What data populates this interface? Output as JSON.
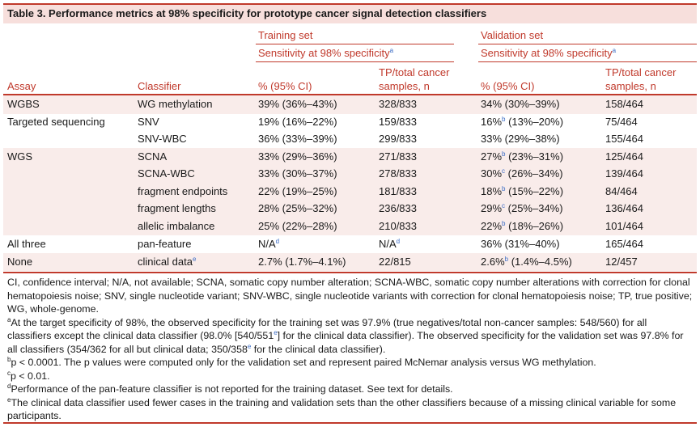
{
  "title": "Table 3.  Performance metrics at 98% specificity for prototype cancer signal detection classifiers",
  "headers": {
    "training_set": "Training set",
    "validation_set": "Validation set",
    "sensitivity_label": "Sensitivity at 98% specificity",
    "sensitivity_sup": "a",
    "assay": "Assay",
    "classifier": "Classifier",
    "pct_ci": "% (95% CI)",
    "tp_line1": "TP/total cancer",
    "tp_line2": "samples, n"
  },
  "rows": [
    {
      "assay": "WGBS",
      "classifier": "WG methylation",
      "classifier_sup": "",
      "train_pct": "39% (36%–43%)",
      "train_sup": "",
      "train_tp": "328/833",
      "train_tp_sup": "",
      "val_main": "34% (30%–39%)",
      "val_sup": "",
      "val_rest": "",
      "val_tp": "158/464"
    },
    {
      "assay": "Targeted sequencing",
      "classifier": "SNV",
      "classifier_sup": "",
      "train_pct": "19% (16%–22%)",
      "train_sup": "",
      "train_tp": "159/833",
      "train_tp_sup": "",
      "val_main": "16%",
      "val_sup": "b",
      "val_rest": " (13%–20%)",
      "val_tp": "75/464"
    },
    {
      "assay": "",
      "classifier": "SNV-WBC",
      "classifier_sup": "",
      "train_pct": "36% (33%–39%)",
      "train_sup": "",
      "train_tp": "299/833",
      "train_tp_sup": "",
      "val_main": "33% (29%–38%)",
      "val_sup": "",
      "val_rest": "",
      "val_tp": "155/464"
    },
    {
      "assay": "WGS",
      "classifier": "SCNA",
      "classifier_sup": "",
      "train_pct": "33% (29%–36%)",
      "train_sup": "",
      "train_tp": "271/833",
      "train_tp_sup": "",
      "val_main": "27%",
      "val_sup": "b",
      "val_rest": " (23%–31%)",
      "val_tp": "125/464"
    },
    {
      "assay": "",
      "classifier": "SCNA-WBC",
      "classifier_sup": "",
      "train_pct": "33% (30%–37%)",
      "train_sup": "",
      "train_tp": "278/833",
      "train_tp_sup": "",
      "val_main": "30%",
      "val_sup": "c",
      "val_rest": " (26%–34%)",
      "val_tp": "139/464"
    },
    {
      "assay": "",
      "classifier": "fragment endpoints",
      "classifier_sup": "",
      "train_pct": "22% (19%–25%)",
      "train_sup": "",
      "train_tp": "181/833",
      "train_tp_sup": "",
      "val_main": "18%",
      "val_sup": "b",
      "val_rest": " (15%–22%)",
      "val_tp": "84/464"
    },
    {
      "assay": "",
      "classifier": "fragment lengths",
      "classifier_sup": "",
      "train_pct": "28% (25%–32%)",
      "train_sup": "",
      "train_tp": "236/833",
      "train_tp_sup": "",
      "val_main": "29%",
      "val_sup": "c",
      "val_rest": " (25%–34%)",
      "val_tp": "136/464"
    },
    {
      "assay": "",
      "classifier": "allelic imbalance",
      "classifier_sup": "",
      "train_pct": "25% (22%–28%)",
      "train_sup": "",
      "train_tp": "210/833",
      "train_tp_sup": "",
      "val_main": "22%",
      "val_sup": "b",
      "val_rest": " (18%–26%)",
      "val_tp": "101/464"
    },
    {
      "assay": "All three",
      "classifier": "pan-feature",
      "classifier_sup": "",
      "train_pct": "N/A",
      "train_sup": "d",
      "train_tp": "N/A",
      "train_tp_sup": "d",
      "val_main": "36% (31%–40%)",
      "val_sup": "",
      "val_rest": "",
      "val_tp": "165/464"
    },
    {
      "assay": "None",
      "classifier": "clinical data",
      "classifier_sup": "e",
      "train_pct": "2.7% (1.7%–4.1%)",
      "train_sup": "",
      "train_tp": "22/815",
      "train_tp_sup": "",
      "val_main": "2.6%",
      "val_sup": "b",
      "val_rest": " (1.4%–4.5%)",
      "val_tp": "12/457"
    }
  ],
  "footnotes": {
    "abbrev": "CI, confidence interval; N/A, not available; SCNA, somatic copy number alteration; SCNA-WBC, somatic copy number alterations with correction for clonal hematopoiesis noise; SNV, single nucleotide variant; SNV-WBC, single nucleotide variants with correction for clonal hematopoiesis noise; TP, true positive; WG, whole-genome.",
    "a_mark": "a",
    "a_text1": "At the target specificity of 98%, the observed specificity for the training set was 97.9% (true negatives/total non-cancer samples: 548/560) for all classifiers except the clinical data classifier (98.0% [540/551",
    "a_ref1": "e",
    "a_text2": "] for the clinical data classifier). The observed specificity for the validation set was 97.8% for all classifiers (354/362 for all but clinical data; 350/358",
    "a_ref2": "e",
    "a_text3": " for the clinical data classifier).",
    "b_mark": "b",
    "b_text": "p < 0.0001. The p values were computed only for the validation set and represent paired McNemar analysis versus WG methylation.",
    "c_mark": "c",
    "c_text": "p < 0.01.",
    "d_mark": "d",
    "d_text": "Performance of the pan-feature classifier is not reported for the training dataset. See text for details.",
    "e_mark": "e",
    "e_text": "The clinical data classifier used fewer cases in the training and validation sets than the other classifiers because of a missing clinical variable for some participants."
  }
}
